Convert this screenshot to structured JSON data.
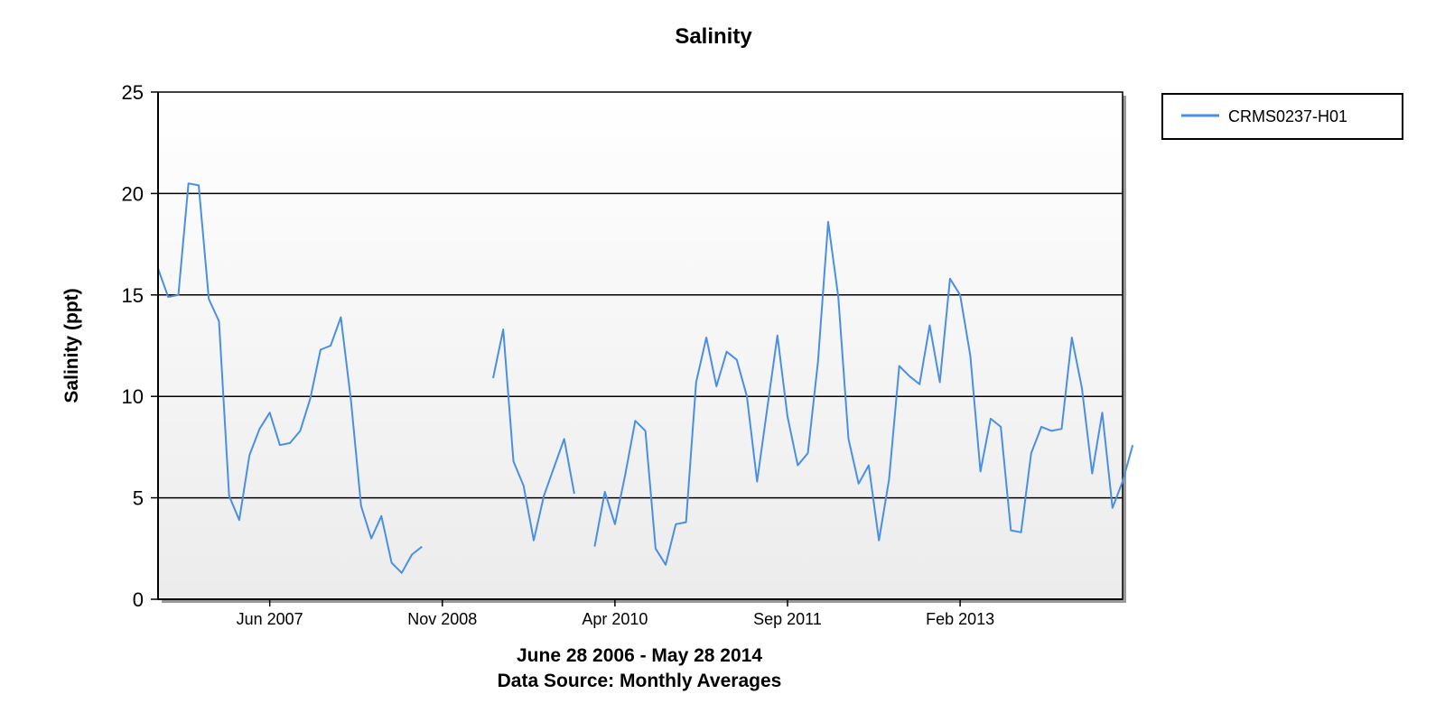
{
  "chart_data": {
    "type": "line",
    "title": "Salinity",
    "ylabel": "Salinity (ppt)",
    "xlabel_lines": [
      "June 28 2006 - May 28 2014",
      "Data Source: Monthly Averages"
    ],
    "ylim": [
      0,
      25
    ],
    "yticks": [
      0,
      5,
      10,
      15,
      20,
      25
    ],
    "x_range_months": [
      0,
      95
    ],
    "xticks": [
      {
        "label": "Jun 2007",
        "month": 11
      },
      {
        "label": "Nov 2008",
        "month": 28
      },
      {
        "label": "Apr 2010",
        "month": 45
      },
      {
        "label": "Sep 2011",
        "month": 62
      },
      {
        "label": "Feb 2013",
        "month": 79
      }
    ],
    "grid": true,
    "legend_position": "top-right",
    "colors": {
      "series": "#4a8fe6",
      "plot_bg_top": "#ffffff",
      "plot_bg_bottom": "#ececec",
      "grid": "#000000"
    },
    "series": [
      {
        "name": "CRMS0237-H01",
        "values": [
          16.3,
          14.9,
          15.0,
          20.5,
          20.4,
          14.8,
          13.7,
          5.1,
          3.9,
          7.1,
          8.4,
          9.2,
          7.6,
          7.7,
          8.3,
          9.9,
          12.3,
          12.5,
          13.9,
          9.8,
          4.6,
          3.0,
          4.1,
          1.8,
          1.3,
          2.2,
          2.6,
          null,
          null,
          null,
          null,
          null,
          null,
          10.9,
          13.3,
          6.8,
          5.6,
          2.9,
          5.1,
          6.5,
          7.9,
          5.2,
          null,
          2.6,
          5.3,
          3.7,
          6.1,
          8.8,
          8.3,
          2.5,
          1.7,
          3.7,
          3.8,
          10.7,
          12.9,
          10.5,
          12.2,
          11.8,
          10.0,
          5.8,
          9.4,
          13.0,
          9.0,
          6.6,
          7.2,
          11.7,
          18.6,
          14.9,
          7.9,
          5.7,
          6.6,
          2.9,
          5.9,
          11.5,
          11.0,
          10.6,
          13.5,
          10.7,
          15.8,
          15.0,
          12.0,
          6.3,
          8.9,
          8.5,
          3.4,
          3.3,
          7.2,
          8.5,
          8.3,
          8.4,
          12.9,
          10.4,
          6.2,
          9.2,
          4.5,
          5.8,
          7.6
        ]
      }
    ]
  }
}
